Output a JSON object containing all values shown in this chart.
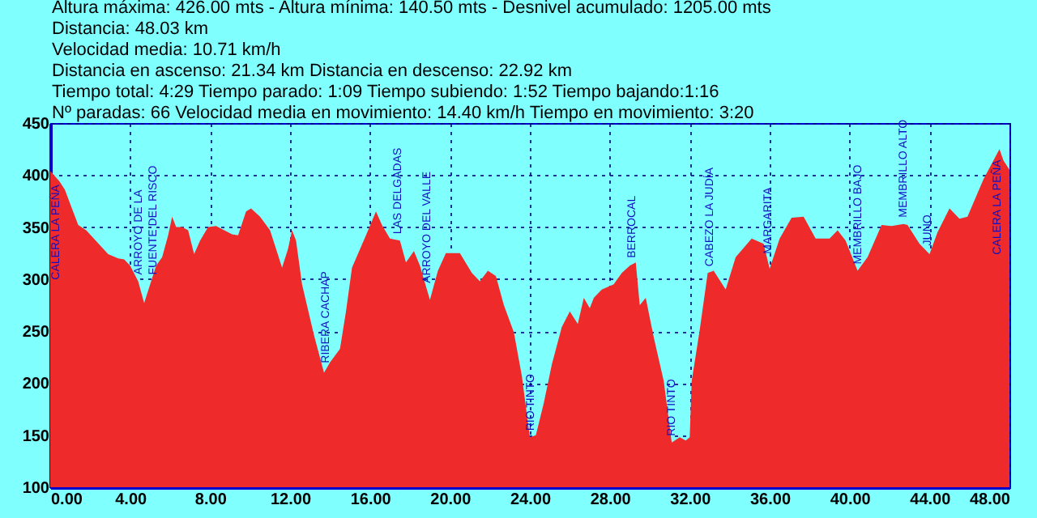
{
  "chart_data": {
    "type": "area",
    "annotations": [
      "Altura máxima: 426.00 mts - Altura mínima: 140.50 mts - Desnivel acumulado: 1205.00 mts",
      "Distancia: 48.03 km",
      "Velocidad media: 10.71 km/h",
      "Distancia en ascenso: 21.34 km   Distancia en descenso: 22.92 km",
      "Tiempo total: 4:29 Tiempo parado: 1:09 Tiempo subiendo: 1:52  Tiempo bajando:1:16",
      "Nº paradas: 66 Velocidad media en movimiento: 14.40 km/h Tiempo en movimiento: 3:20",
      {
        "text": "CALERA LA PEÑA",
        "x": 0.3,
        "y": 397
      },
      {
        "text": "ARROYO DE LA\nFUENTE DEL RISCO",
        "x": 4.4,
        "y": 298
      },
      {
        "text": "RIBERA CACHAP",
        "x": 13.8,
        "y": 213
      },
      {
        "text": "LAS DELGADAS",
        "x": 17.4,
        "y": 337
      },
      {
        "text": "ARROYO DEL VALLE",
        "x": 18.85,
        "y": 290
      },
      {
        "text": "RIO TINTO",
        "x": 24.05,
        "y": 148
      },
      {
        "text": "BERROCAL",
        "x": 29.1,
        "y": 314
      },
      {
        "text": "RIO TINTO",
        "x": 31.1,
        "y": 143
      },
      {
        "text": "CABEZO LA JUDÍA",
        "x": 33.0,
        "y": 306
      },
      {
        "text": "MARGARITA",
        "x": 35.9,
        "y": 318
      },
      {
        "text": "MEMBRILLO BAJO",
        "x": 40.4,
        "y": 308
      },
      {
        "text": "MEMBRILLO ALTO",
        "x": 42.7,
        "y": 353
      },
      {
        "text": "JUNO",
        "x": 43.9,
        "y": 326
      },
      {
        "text": "CALERA LA PEÑA",
        "x": 47.4,
        "y": 421
      }
    ],
    "series": [
      {
        "color": "#ee2a2a",
        "x": [
          0,
          0.46,
          0.73,
          1.4,
          1.8,
          2.9,
          3.4,
          3.7,
          4.0,
          4.4,
          4.7,
          5.05,
          5.3,
          5.6,
          5.9,
          6.1,
          6.3,
          6.6,
          6.9,
          7.2,
          7.5,
          7.9,
          8.3,
          9.1,
          9.4,
          9.8,
          10.05,
          10.5,
          11.0,
          11.3,
          11.6,
          11.9,
          12.1,
          12.3,
          12.6,
          13.2,
          13.7,
          14.0,
          14.5,
          14.8,
          15.1,
          15.8,
          16.3,
          16.6,
          17.0,
          17.5,
          17.8,
          18.2,
          18.5,
          19.0,
          19.4,
          19.8,
          20.5,
          21.1,
          21.5,
          21.9,
          22.3,
          22.7,
          23.2,
          23.6,
          24.0,
          24.3,
          24.7,
          25.1,
          25.6,
          26.0,
          26.4,
          26.7,
          27.0,
          27.2,
          27.6,
          28.2,
          28.6,
          29.0,
          29.3,
          29.5,
          29.8,
          30.2,
          30.7,
          31.1,
          31.5,
          31.8,
          32.0,
          32.1,
          32.5,
          32.9,
          33.2,
          33.8,
          34.3,
          35.1,
          35.7,
          36.0,
          36.5,
          37.1,
          37.7,
          38.3,
          39.0,
          39.4,
          39.8,
          40.4,
          40.9,
          41.6,
          42.1,
          42.7,
          42.9,
          43.5,
          44.0,
          44.4,
          45.0,
          45.5,
          45.9,
          46.7,
          47.5,
          47.7,
          48.0
        ],
        "values": [
          404,
          394,
          386,
          352,
          347,
          324,
          320,
          319,
          313,
          298,
          277,
          298,
          313,
          321,
          342,
          360,
          350,
          350,
          347,
          324,
          337,
          350,
          351,
          343,
          342,
          365,
          368,
          360,
          347,
          329,
          311,
          329,
          347,
          337,
          295,
          246,
          210,
          220,
          233,
          269,
          311,
          342,
          365,
          352,
          339,
          337,
          316,
          327,
          313,
          280,
          308,
          325,
          325,
          306,
          298,
          308,
          303,
          275,
          249,
          207,
          148,
          150,
          181,
          218,
          254,
          269,
          257,
          282,
          272,
          282,
          290,
          295,
          306,
          313,
          316,
          275,
          282,
          244,
          202,
          143,
          148,
          145,
          148,
          202,
          251,
          306,
          308,
          290,
          321,
          339,
          334,
          310,
          339,
          359,
          360,
          339,
          339,
          347,
          337,
          308,
          321,
          352,
          351,
          353,
          352,
          334,
          324,
          345,
          368,
          358,
          360,
          396,
          425,
          414,
          405
        ]
      }
    ],
    "xlim": [
      0,
      48
    ],
    "ylim": [
      100,
      450
    ],
    "xticks": [
      {
        "value": 0,
        "label": "0.00"
      },
      {
        "value": 4,
        "label": "4.00"
      },
      {
        "value": 8,
        "label": "8.00"
      },
      {
        "value": 12,
        "label": "12.00"
      },
      {
        "value": 16,
        "label": "16.00"
      },
      {
        "value": 20,
        "label": "20.00"
      },
      {
        "value": 24,
        "label": "24.00"
      },
      {
        "value": 28,
        "label": "28.00"
      },
      {
        "value": 32,
        "label": "32.00"
      },
      {
        "value": 36,
        "label": "36.00"
      },
      {
        "value": 40,
        "label": "40.00"
      },
      {
        "value": 44,
        "label": "44.00"
      },
      {
        "value": 48,
        "label": "48.00"
      }
    ],
    "yticks": [
      100,
      150,
      200,
      250,
      300,
      350,
      400,
      450
    ],
    "grid": true
  }
}
